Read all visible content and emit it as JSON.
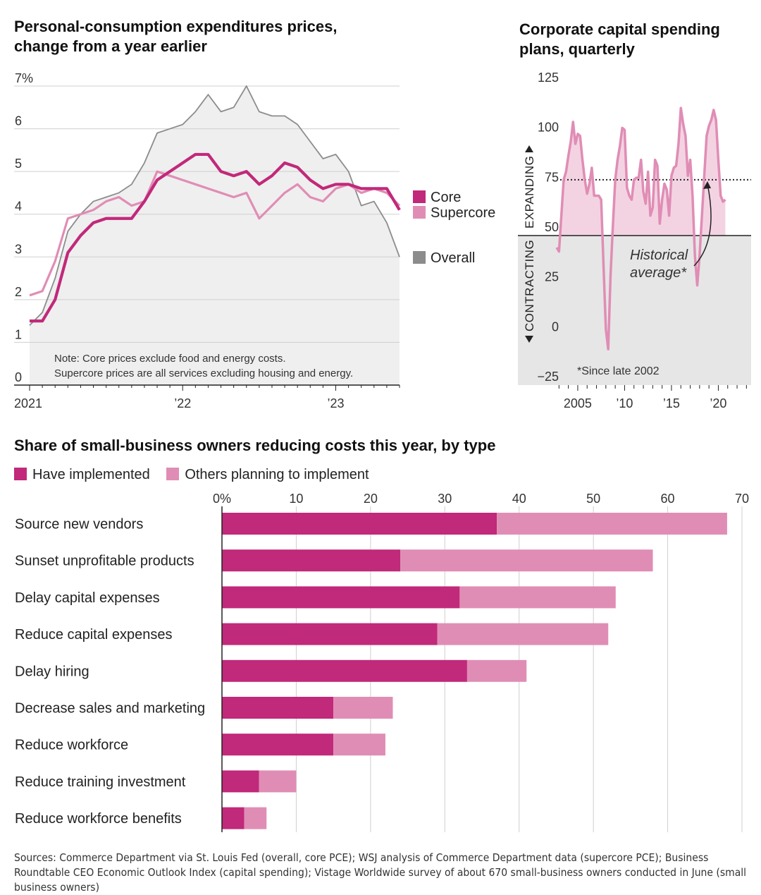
{
  "titles": {
    "pce": "Personal-consumption expenditures prices, change from a year earlier",
    "pce_line1": "Personal-consumption expenditures prices,",
    "pce_line2": "change from a year earlier",
    "capex_line1": "Corporate capital spending",
    "capex_line2": "plans, quarterly",
    "small_biz": "Share of small-business owners reducing costs this year, by type"
  },
  "sources": "Sources: Commerce Department via St. Louis Fed (overall, core PCE); WSJ analysis of Commerce Department data (supercore PCE); Business Roundtable CEO Economic Outlook Index (capital spending); Vistage Worldwide survey of about 670 small-business owners conducted in June (small business owners)",
  "colors": {
    "core": "#c1297a",
    "supercore": "#e08db5",
    "overall": "#8c8c8c",
    "overall_fill": "#efefef",
    "capex_line": "#e08db5",
    "capex_fill": "#f3d3e2",
    "contract_fill": "#e6e6e6"
  },
  "chart_data": [
    {
      "type": "line",
      "title": "Personal-consumption expenditures prices, change from a year earlier",
      "ylabel": "%",
      "ylim": [
        0,
        7
      ],
      "yticks": [
        "0",
        "1",
        "2",
        "3",
        "4",
        "5",
        "6",
        "7%"
      ],
      "xticks": [
        "2021",
        "’22",
        "’23"
      ],
      "x": [
        "2021-01",
        "2021-02",
        "2021-03",
        "2021-04",
        "2021-05",
        "2021-06",
        "2021-07",
        "2021-08",
        "2021-09",
        "2021-10",
        "2021-11",
        "2021-12",
        "2022-01",
        "2022-02",
        "2022-03",
        "2022-04",
        "2022-05",
        "2022-06",
        "2022-07",
        "2022-08",
        "2022-09",
        "2022-10",
        "2022-11",
        "2022-12",
        "2023-01",
        "2023-02",
        "2023-03",
        "2023-04",
        "2023-05",
        "2023-06"
      ],
      "series": [
        {
          "name": "Core",
          "values": [
            1.5,
            1.5,
            2.0,
            3.1,
            3.5,
            3.8,
            3.9,
            3.9,
            3.9,
            4.3,
            4.8,
            5.0,
            5.2,
            5.4,
            5.4,
            5.0,
            4.9,
            5.0,
            4.7,
            4.9,
            5.2,
            5.1,
            4.8,
            4.6,
            4.7,
            4.7,
            4.6,
            4.6,
            4.6,
            4.1
          ]
        },
        {
          "name": "Supercore",
          "values": [
            2.1,
            2.2,
            2.9,
            3.9,
            4.0,
            4.1,
            4.3,
            4.4,
            4.2,
            4.3,
            5.0,
            4.9,
            4.8,
            4.7,
            4.6,
            4.5,
            4.4,
            4.5,
            3.9,
            4.2,
            4.5,
            4.7,
            4.4,
            4.3,
            4.6,
            4.7,
            4.5,
            4.6,
            4.5,
            4.2
          ]
        },
        {
          "name": "Overall",
          "values": [
            1.4,
            1.7,
            2.5,
            3.6,
            4.0,
            4.3,
            4.4,
            4.5,
            4.7,
            5.2,
            5.9,
            6.0,
            6.1,
            6.4,
            6.8,
            6.4,
            6.5,
            7.0,
            6.4,
            6.3,
            6.3,
            6.1,
            5.7,
            5.3,
            5.4,
            5.0,
            4.2,
            4.3,
            3.8,
            3.0
          ]
        }
      ],
      "legend": [
        "Core",
        "Supercore",
        "Overall"
      ],
      "note_line1": "Note: Core prices exclude food and energy costs.",
      "note_line2": "Supercore prices are all services excluding housing and energy."
    },
    {
      "type": "area",
      "title": "Corporate capital spending plans, quarterly",
      "ylim": [
        -25,
        125
      ],
      "yticks": [
        "125",
        "100",
        "75",
        "50",
        "25",
        "0",
        "−25"
      ],
      "xticks": [
        "2005",
        "’10",
        "’15",
        "’20"
      ],
      "x_start": 2002.75,
      "x_step": 0.25,
      "values": [
        44,
        42,
        60,
        78,
        82,
        90,
        97,
        107,
        96,
        101,
        100,
        88,
        78,
        71,
        76,
        84,
        70,
        70,
        70,
        68,
        35,
        3,
        -7,
        30,
        55,
        78,
        88,
        95,
        104,
        103,
        74,
        70,
        68,
        78,
        79,
        79,
        88,
        72,
        66,
        82,
        60,
        64,
        88,
        85,
        56,
        68,
        76,
        73,
        60,
        80,
        84,
        85,
        96,
        114,
        106,
        100,
        80,
        88,
        70,
        40,
        25,
        40,
        60,
        80,
        100,
        105,
        108,
        113,
        108,
        88,
        70,
        67,
        68
      ],
      "historical_average": 78,
      "baseline": 50,
      "label_expanding": "EXPANDING",
      "label_contracting": "CONTRACTING",
      "annotation_line1": "Historical",
      "annotation_line2": "average*",
      "footnote": "*Since late 2002"
    },
    {
      "type": "bar",
      "title": "Share of small-business owners reducing costs this year, by type",
      "categories": [
        "Source new vendors",
        "Sunset unprofitable products",
        "Delay capital expenses",
        "Reduce capital expenses",
        "Delay hiring",
        "Decrease sales and marketing",
        "Reduce workforce",
        "Reduce training investment",
        "Reduce workforce benefits"
      ],
      "series": [
        {
          "name": "Have implemented",
          "values": [
            37,
            24,
            32,
            29,
            33,
            15,
            15,
            5,
            3
          ]
        },
        {
          "name": "Others planning to implement",
          "values": [
            31,
            34,
            21,
            23,
            8,
            8,
            7,
            5,
            3
          ]
        }
      ],
      "xlim": [
        0,
        70
      ],
      "xticks": [
        "0%",
        "10",
        "20",
        "30",
        "40",
        "50",
        "60",
        "70"
      ]
    }
  ]
}
